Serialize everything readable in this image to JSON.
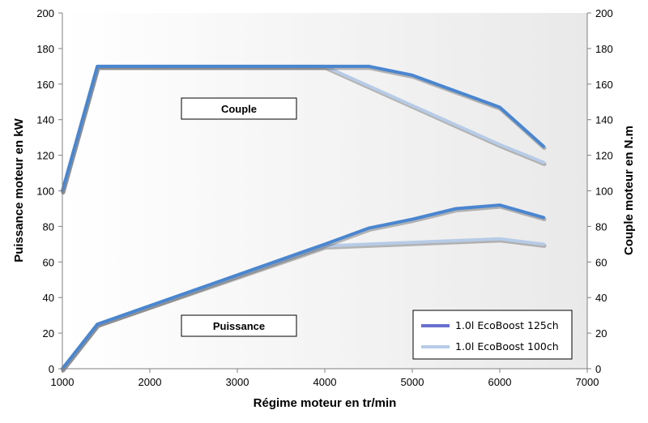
{
  "chart_data": {
    "type": "line",
    "xlabel": "Régime moteur en tr/min",
    "ylabel": "Puissance moteur en kW",
    "y2label": "Couple moteur en N.m",
    "xlim": [
      1000,
      7000
    ],
    "ylim": [
      0,
      200
    ],
    "y2lim": [
      0,
      200
    ],
    "x_ticks": [
      1000,
      2000,
      3000,
      4000,
      5000,
      6000,
      7000
    ],
    "y_ticks": [
      0,
      20,
      40,
      60,
      80,
      100,
      120,
      140,
      160,
      180,
      200
    ],
    "grid": false,
    "legend_position": "bottom-right",
    "annotations": [
      {
        "text": "Couple",
        "group": "torque"
      },
      {
        "text": "Puissance",
        "group": "power"
      }
    ],
    "series": [
      {
        "name": "1.0l EcoBoost 125ch",
        "color": "#4a86d0",
        "groups": {
          "torque": {
            "x": [
              1000,
              1400,
              4000,
              4500,
              5000,
              6000,
              6500
            ],
            "y": [
              100,
              170,
              170,
              170,
              165,
              147,
              125
            ]
          },
          "power": {
            "x": [
              1000,
              1400,
              4000,
              4500,
              5000,
              5500,
              6000,
              6500
            ],
            "y": [
              0,
              25,
              70,
              79,
              84,
              90,
              92,
              85
            ]
          }
        }
      },
      {
        "name": "1.0l EcoBoost 100ch",
        "color": "#b7cbe6",
        "groups": {
          "torque": {
            "x": [
              1000,
              1400,
              4000,
              5000,
              6000,
              6500
            ],
            "y": [
              100,
              170,
              170,
              148,
              126,
              116
            ]
          },
          "power": {
            "x": [
              1000,
              1400,
              4000,
              5000,
              6000,
              6500
            ],
            "y": [
              0,
              25,
              69,
              71,
              73,
              70
            ]
          }
        }
      }
    ]
  }
}
